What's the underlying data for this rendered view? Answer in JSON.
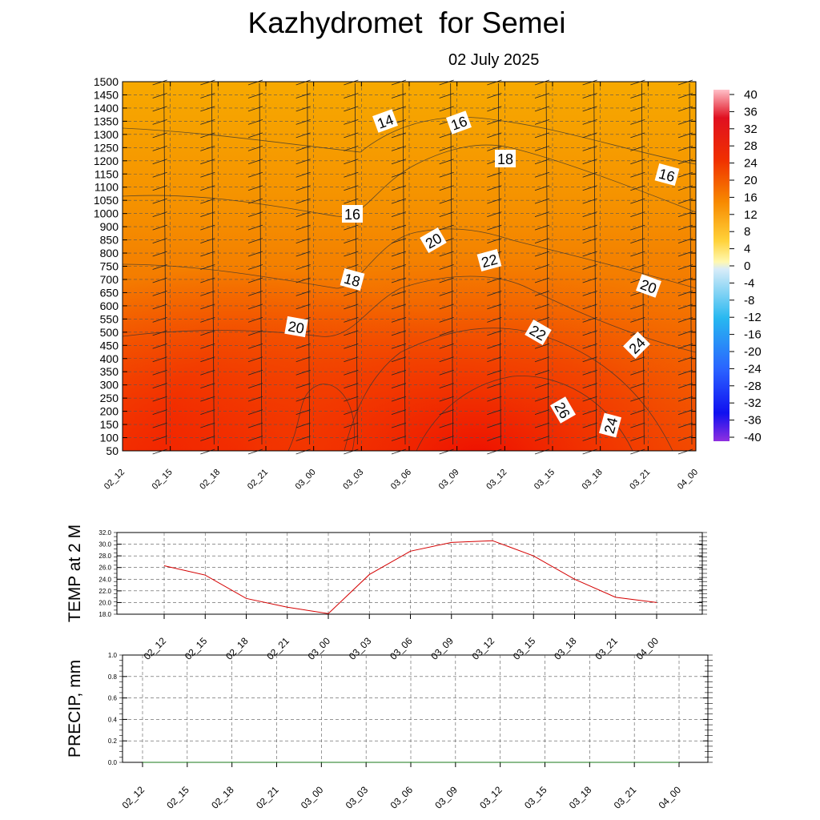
{
  "title": "Kazhydromet  for Semei",
  "subtitle": "02 July 2025",
  "colors": {
    "field_warm": "#f38f00",
    "field_hot": "#f21500",
    "line": "#d40000",
    "grid": "#666666"
  },
  "chart_data": [
    {
      "type": "heatmap",
      "name": "cross-section",
      "x_labels": [
        "02_12",
        "02_15",
        "02_18",
        "02_21",
        "03_00",
        "03_03",
        "03_06",
        "03_09",
        "03_12",
        "03_15",
        "03_18",
        "03_21",
        "04_00"
      ],
      "y_labels": [
        "1500",
        "1450",
        "1400",
        "1350",
        "1300",
        "1250",
        "1200",
        "1150",
        "1100",
        "1050",
        "1000",
        "900",
        "850",
        "800",
        "750",
        "700",
        "650",
        "600",
        "550",
        "500",
        "450",
        "400",
        "350",
        "300",
        "250",
        "200",
        "150",
        "100",
        "50"
      ],
      "contour_labels": [
        "14",
        "16",
        "18",
        "16",
        "16",
        "18",
        "20",
        "22",
        "20",
        "20",
        "22",
        "24",
        "24",
        "26",
        "24"
      ],
      "colorbar": {
        "labels": [
          "40",
          "36",
          "32",
          "28",
          "24",
          "20",
          "16",
          "12",
          "8",
          "4",
          "0",
          "-4",
          "-8",
          "-12",
          "-16",
          "-20",
          "-24",
          "-28",
          "-32",
          "-36",
          "-40"
        ]
      },
      "grid": true,
      "wind_barbs": true
    },
    {
      "type": "line",
      "name": "temp",
      "ylabel": "TEMP at 2 M",
      "x": [
        "02_12",
        "02_15",
        "02_18",
        "02_21",
        "03_00",
        "03_03",
        "03_06",
        "03_09",
        "03_12",
        "03_15",
        "03_18",
        "03_21",
        "04_00"
      ],
      "values": [
        26.3,
        24.7,
        20.7,
        19.2,
        18.1,
        24.8,
        28.8,
        30.3,
        30.6,
        28.0,
        24.0,
        20.9,
        20.0
      ],
      "y_ticks": [
        "32.0",
        "30.0",
        "28.0",
        "26.0",
        "24.0",
        "22.0",
        "20.0",
        "18.0"
      ],
      "ylim": [
        18,
        32
      ],
      "grid": true
    },
    {
      "type": "line",
      "name": "precip",
      "ylabel": "PRECIP, mm",
      "x": [
        "02_12",
        "02_15",
        "02_18",
        "02_21",
        "03_00",
        "03_03",
        "03_06",
        "03_09",
        "03_12",
        "03_15",
        "03_18",
        "03_21",
        "04_00"
      ],
      "values": [
        0,
        0,
        0,
        0,
        0,
        0,
        0,
        0,
        0,
        0,
        0,
        0,
        0
      ],
      "y_ticks": [
        "1.0",
        "0.8",
        "0.6",
        "0.4",
        "0.2",
        "0.0"
      ],
      "ylim": [
        0,
        1
      ],
      "grid": true
    }
  ]
}
